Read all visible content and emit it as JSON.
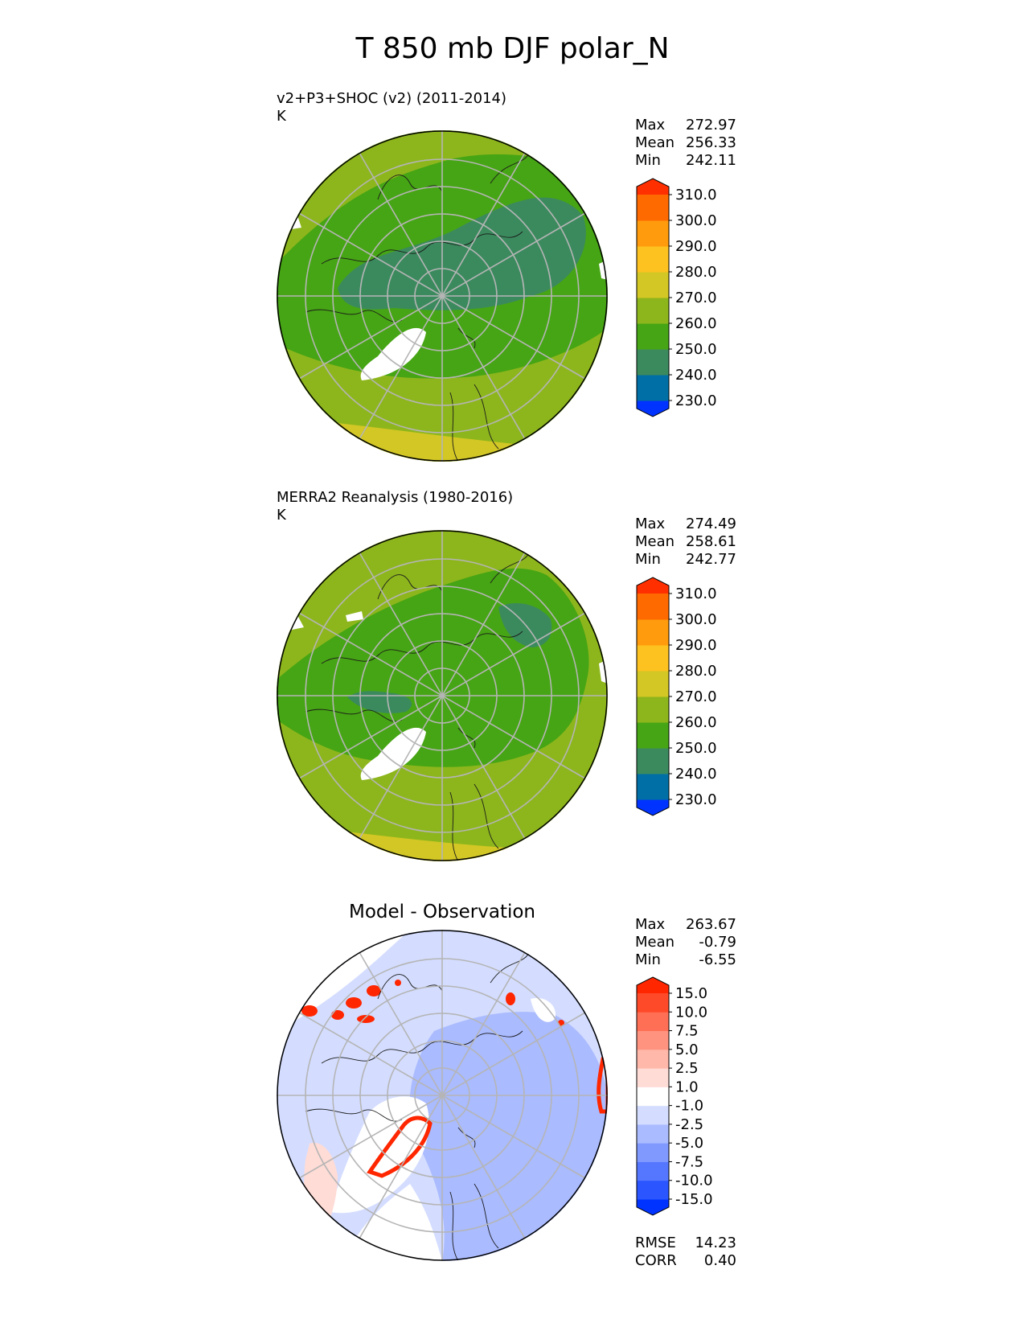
{
  "page": {
    "title": "T 850 mb DJF polar_N"
  },
  "panels": {
    "test": {
      "title": "v2+P3+SHOC (v2) (2011-2014)",
      "units": "K",
      "stats": {
        "max_label": "Max",
        "max": "272.97",
        "mean_label": "Mean",
        "mean": "256.33",
        "min_label": "Min",
        "min": "242.11"
      }
    },
    "ref": {
      "title": "MERRA2 Reanalysis (1980-2016)",
      "units": "K",
      "stats": {
        "max_label": "Max",
        "max": "274.49",
        "mean_label": "Mean",
        "mean": "258.61",
        "min_label": "Min",
        "min": "242.77"
      }
    },
    "diff": {
      "title": "Model - Observation",
      "stats": {
        "max_label": "Max",
        "max": "263.67",
        "mean_label": "Mean",
        "mean": "-0.79",
        "min_label": "Min",
        "min": "-6.55",
        "rmse_label": "RMSE",
        "rmse": "14.23",
        "corr_label": "CORR",
        "corr": "0.40"
      }
    }
  },
  "chart_data": [
    {
      "type": "heatmap",
      "projection": "north polar stereographic",
      "title": "v2+P3+SHOC (v2) (2011-2014)",
      "units": "K",
      "colorbar": {
        "ticks": [
          "230.0",
          "240.0",
          "250.0",
          "260.0",
          "270.0",
          "280.0",
          "290.0",
          "300.0",
          "310.0"
        ],
        "colors": [
          "#0033ff",
          "#006fa6",
          "#3b8a5e",
          "#46a514",
          "#8db61c",
          "#d2c724",
          "#fdc220",
          "#ff9b0c",
          "#ff6a00",
          "#ff2f00"
        ],
        "extend": "both"
      },
      "stats": {
        "max": 272.97,
        "mean": 256.33,
        "min": 242.11
      }
    },
    {
      "type": "heatmap",
      "projection": "north polar stereographic",
      "title": "MERRA2 Reanalysis (1980-2016)",
      "units": "K",
      "colorbar": {
        "ticks": [
          "230.0",
          "240.0",
          "250.0",
          "260.0",
          "270.0",
          "280.0",
          "290.0",
          "300.0",
          "310.0"
        ],
        "colors": [
          "#0033ff",
          "#006fa6",
          "#3b8a5e",
          "#46a514",
          "#8db61c",
          "#d2c724",
          "#fdc220",
          "#ff9b0c",
          "#ff6a00",
          "#ff2f00"
        ],
        "extend": "both"
      },
      "stats": {
        "max": 274.49,
        "mean": 258.61,
        "min": 242.77
      }
    },
    {
      "type": "heatmap",
      "projection": "north polar stereographic",
      "title": "Model - Observation",
      "colorbar": {
        "ticks": [
          "-15.0",
          "-10.0",
          "-7.5",
          "-5.0",
          "-2.5",
          "-1.0",
          "1.0",
          "2.5",
          "5.0",
          "7.5",
          "10.0",
          "15.0"
        ],
        "colors": [
          "#0033ff",
          "#2a55ff",
          "#5577ff",
          "#8099ff",
          "#aabbff",
          "#d4ddff",
          "#ffffff",
          "#ffdcd6",
          "#ffb8aa",
          "#ff9380",
          "#ff6f55",
          "#ff4a2a",
          "#ff2600"
        ],
        "extend": "both"
      },
      "stats": {
        "max": 263.67,
        "mean": -0.79,
        "min": -6.55,
        "rmse": 14.23,
        "corr": 0.4
      }
    }
  ]
}
